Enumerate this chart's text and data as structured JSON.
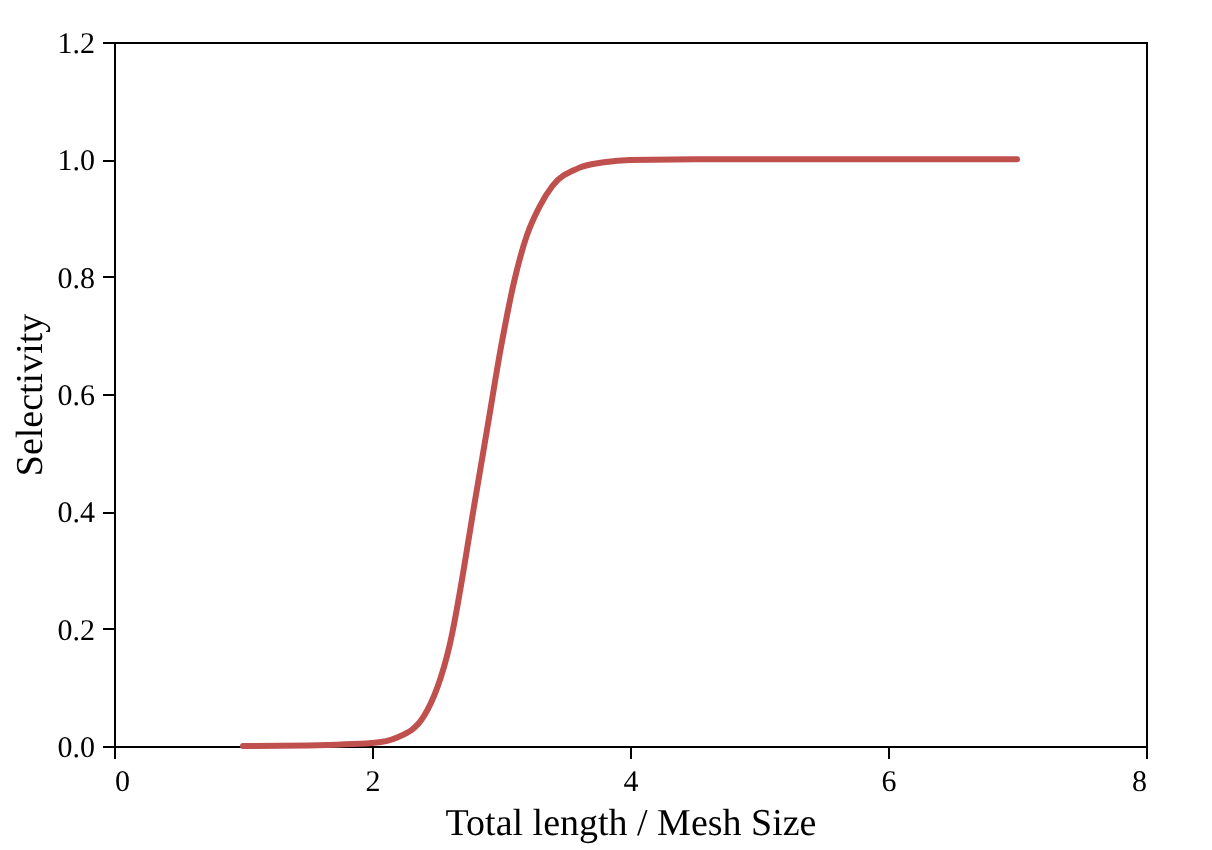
{
  "chart_data": {
    "type": "line",
    "xlabel": "Total length / Mesh Size",
    "ylabel": "Selectivity",
    "x": [
      1.0,
      1.5,
      2.0,
      2.2,
      2.4,
      2.6,
      2.8,
      2.9,
      3.0,
      3.1,
      3.2,
      3.3,
      3.4,
      3.6,
      3.8,
      4.0,
      4.5,
      5.0,
      6.0,
      7.0
    ],
    "series": [
      {
        "color": "#c0504d",
        "values": [
          0.0,
          0.001,
          0.005,
          0.015,
          0.05,
          0.17,
          0.42,
          0.55,
          0.68,
          0.79,
          0.87,
          0.92,
          0.955,
          0.985,
          0.995,
          0.999,
          1.0,
          1.0,
          1.0,
          1.0
        ]
      }
    ],
    "xlim": [
      0,
      8
    ],
    "xticks": [
      0,
      2,
      4,
      6,
      8
    ],
    "ylim": [
      0,
      1.2
    ],
    "yticks": [
      {
        "value": 0,
        "label": "0.0"
      },
      {
        "value": 0.2,
        "label": "0.2"
      },
      {
        "value": 0.4,
        "label": "0.4"
      },
      {
        "value": 0.6,
        "label": "0.6"
      },
      {
        "value": 0.8,
        "label": "0.8"
      },
      {
        "value": 1.0,
        "label": "1.0"
      },
      {
        "value": 1.2,
        "label": "1.2"
      }
    ],
    "grid": false,
    "marker": "none",
    "line_style": "solid"
  }
}
